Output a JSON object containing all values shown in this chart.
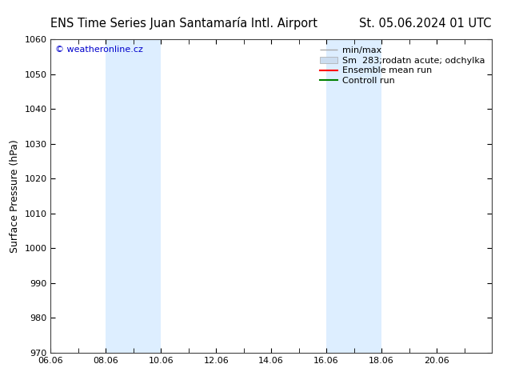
{
  "title_left": "ENS Time Series Juan Santamaría Intl. Airport",
  "title_right": "St. 05.06.2024 01 UTC",
  "ylabel": "Surface Pressure (hPa)",
  "ylim": [
    970,
    1060
  ],
  "yticks": [
    970,
    980,
    990,
    1000,
    1010,
    1020,
    1030,
    1040,
    1050,
    1060
  ],
  "xlim": [
    0,
    16
  ],
  "xtick_labels": [
    "06.06",
    "08.06",
    "10.06",
    "12.06",
    "14.06",
    "16.06",
    "18.06",
    "20.06"
  ],
  "xtick_positions": [
    0,
    2,
    4,
    6,
    8,
    10,
    12,
    14
  ],
  "shaded_bands": [
    {
      "x_start": 2,
      "x_end": 4
    },
    {
      "x_start": 10,
      "x_end": 12
    }
  ],
  "band_color": "#ddeeff",
  "background_color": "#ffffff",
  "watermark": "© weatheronline.cz",
  "watermark_color": "#0000cc",
  "legend_label_minmax": "min/max",
  "legend_label_spread": "Sm  283;rodatn acute; odchylka",
  "legend_label_ensemble": "Ensemble mean run",
  "legend_label_control": "Controll run",
  "legend_color_minmax": "#aaaaaa",
  "legend_color_spread": "#ccddf0",
  "legend_color_ensemble": "#ff0000",
  "legend_color_control": "#008000",
  "title_fontsize": 10.5,
  "axis_label_fontsize": 9,
  "tick_fontsize": 8,
  "legend_fontsize": 8,
  "watermark_fontsize": 8
}
